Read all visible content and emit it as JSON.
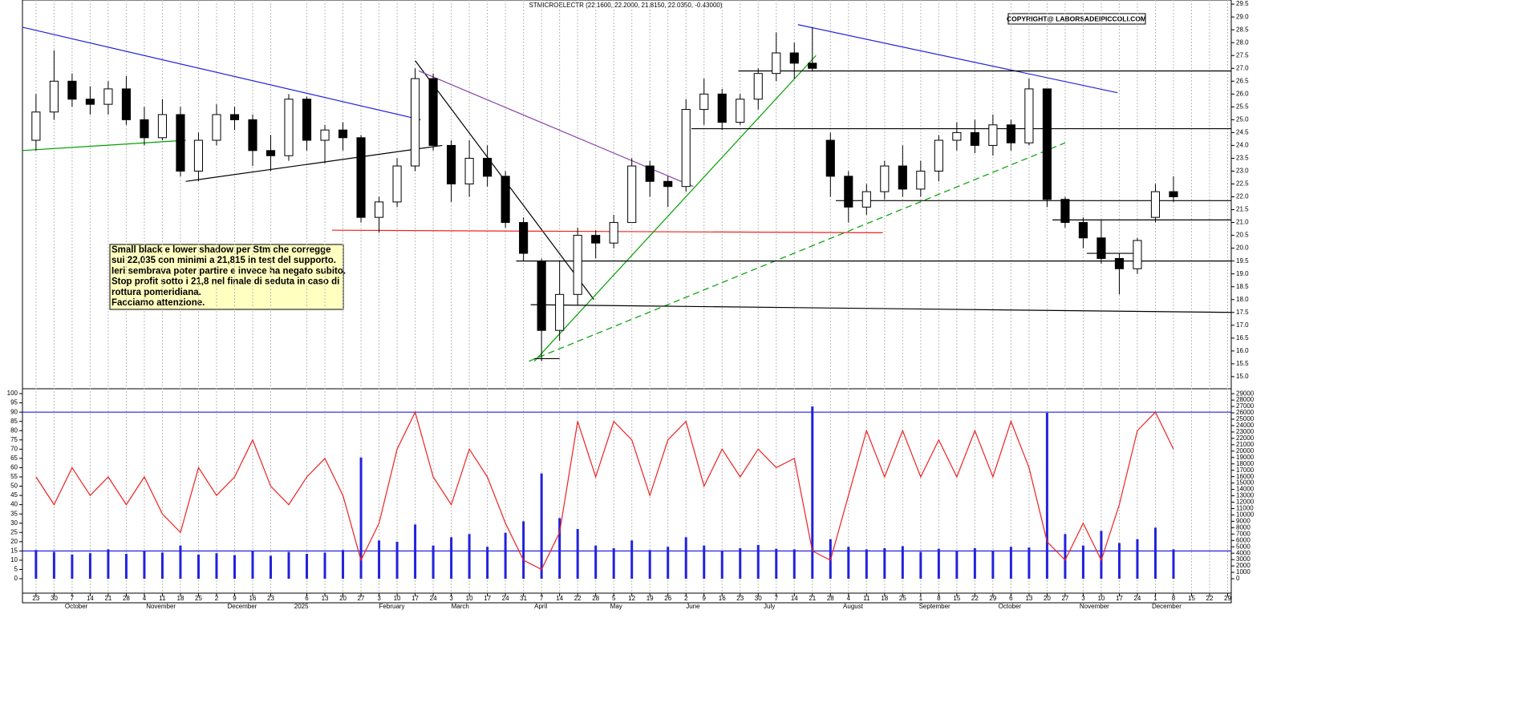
{
  "chart_data": [
    {
      "type": "candlestick",
      "title": "STMICROELECTR (22.1600, 22.2000, 21.8150, 22.0350, -0.43000)",
      "copyright": "COPYRIGHT@ LABORSADEIPICCOLI.COM",
      "annotation": [
        "Small black e lower shadow per Stm che corregge",
        "sui 22,035 con minimi a 21,815 in test del supporto.",
        "Ieri sembrava poter partire e invece ha negato subito.",
        "Stop profit sotto i 21,8 nel finale di seduta in caso di",
        "rottura pomeridiana.",
        "Facciamo attenzione."
      ],
      "open": [
        24.2,
        25.3,
        26.5,
        25.8,
        25.6,
        26.2,
        25.0,
        24.3,
        25.2,
        23.0,
        24.2,
        25.2,
        25.0,
        23.8,
        23.6,
        25.8,
        24.2,
        24.6,
        24.3,
        21.2,
        21.8,
        23.2,
        26.6,
        24.0,
        22.5,
        23.5,
        22.8,
        21.0,
        19.5,
        16.8,
        18.2,
        20.5,
        20.2,
        21.0,
        23.2,
        22.6,
        22.4,
        25.4,
        26.0,
        24.9,
        25.8,
        26.8,
        27.6,
        27.2,
        24.2,
        22.8,
        21.6,
        22.2,
        23.2,
        22.3,
        23.0,
        24.2,
        24.5,
        24.0,
        24.8,
        24.1,
        26.2,
        21.9,
        21.0,
        20.4,
        19.6,
        19.2,
        21.2,
        22.2
      ],
      "high": [
        26.0,
        27.7,
        26.8,
        26.3,
        26.5,
        26.7,
        25.5,
        25.8,
        25.5,
        24.5,
        25.6,
        25.5,
        25.2,
        24.4,
        26.0,
        25.9,
        24.8,
        24.9,
        24.4,
        22.0,
        23.5,
        27.0,
        26.8,
        24.2,
        24.2,
        24.0,
        23.0,
        21.2,
        19.6,
        19.5,
        20.8,
        20.7,
        21.3,
        23.5,
        23.4,
        22.8,
        25.8,
        26.6,
        26.2,
        26.0,
        27.0,
        28.4,
        28.0,
        28.6,
        24.5,
        23.0,
        22.5,
        23.4,
        24.0,
        23.4,
        24.4,
        24.9,
        25.0,
        25.2,
        25.0,
        26.6,
        26.2,
        22.0,
        21.2,
        21.1,
        19.8,
        20.4,
        22.5,
        22.8
      ],
      "low": [
        23.8,
        25.0,
        25.5,
        25.2,
        25.2,
        24.8,
        24.0,
        24.2,
        22.8,
        22.6,
        24.0,
        24.6,
        23.2,
        23.0,
        23.4,
        23.8,
        23.3,
        23.8,
        21.0,
        20.6,
        21.6,
        23.0,
        23.8,
        21.8,
        22.0,
        22.4,
        20.8,
        19.5,
        15.6,
        16.4,
        17.8,
        19.6,
        20.0,
        21.0,
        22.0,
        21.6,
        22.2,
        24.8,
        24.6,
        24.8,
        25.4,
        26.5,
        26.6,
        26.9,
        22.0,
        21.0,
        21.3,
        21.9,
        22.0,
        22.0,
        22.6,
        23.8,
        23.7,
        23.6,
        23.8,
        24.0,
        21.6,
        20.8,
        20.0,
        19.4,
        18.2,
        19.0,
        21.0,
        21.8
      ],
      "close": [
        25.3,
        26.5,
        25.8,
        25.6,
        26.2,
        25.0,
        24.3,
        25.2,
        23.0,
        24.2,
        25.2,
        25.0,
        23.8,
        23.6,
        25.8,
        24.2,
        24.6,
        24.3,
        21.2,
        21.8,
        23.2,
        26.6,
        24.0,
        22.5,
        23.5,
        22.8,
        21.0,
        19.8,
        16.8,
        18.2,
        20.5,
        20.2,
        21.0,
        23.2,
        22.6,
        22.4,
        25.4,
        26.0,
        24.9,
        25.8,
        26.8,
        27.6,
        27.2,
        27.0,
        22.8,
        21.6,
        22.2,
        23.2,
        22.3,
        23.0,
        24.2,
        24.5,
        24.0,
        24.8,
        24.1,
        26.2,
        21.9,
        21.0,
        20.4,
        19.6,
        19.2,
        20.3,
        22.2,
        22.0
      ],
      "xlim": [
        -0.75,
        66.2
      ],
      "ylim": [
        14.56,
        29.66
      ],
      "yticks": [
        {
          "value": 15.0,
          "label": "15.0"
        },
        {
          "value": 15.5,
          "label": "15.5"
        },
        {
          "value": 16.0,
          "label": "16.0"
        },
        {
          "value": 16.5,
          "label": "16.5"
        },
        {
          "value": 17.0,
          "label": "17.0"
        },
        {
          "value": 17.5,
          "label": "17.5"
        },
        {
          "value": 18.0,
          "label": "18.0"
        },
        {
          "value": 18.5,
          "label": "18.5"
        },
        {
          "value": 19.0,
          "label": "19.0"
        },
        {
          "value": 19.5,
          "label": "19.5"
        },
        {
          "value": 20.0,
          "label": "20.0"
        },
        {
          "value": 20.5,
          "label": "20.5"
        },
        {
          "value": 21.0,
          "label": "21.0"
        },
        {
          "value": 21.5,
          "label": "21.5"
        },
        {
          "value": 22.0,
          "label": "22.0"
        },
        {
          "value": 22.5,
          "label": "22.5"
        },
        {
          "value": 23.0,
          "label": "23.0"
        },
        {
          "value": 23.5,
          "label": "23.5"
        },
        {
          "value": 24.0,
          "label": "24.0"
        },
        {
          "value": 24.5,
          "label": "24.5"
        },
        {
          "value": 25.0,
          "label": "25.0"
        },
        {
          "value": 25.5,
          "label": "25.5"
        },
        {
          "value": 26.0,
          "label": "26.0"
        },
        {
          "value": 26.5,
          "label": "26.5"
        },
        {
          "value": 27.0,
          "label": "27.0"
        },
        {
          "value": 27.5,
          "label": "27.5"
        },
        {
          "value": 28.0,
          "label": "28.0"
        },
        {
          "value": 28.5,
          "label": "28.5"
        },
        {
          "value": 29.0,
          "label": "29.0"
        },
        {
          "value": 29.5,
          "label": "29.5"
        }
      ],
      "lines": [
        {
          "color": "#2222dd",
          "x": [
            -0.75,
            21.3
          ],
          "y": [
            28.6,
            25.0
          ]
        },
        {
          "color": "#00a000",
          "x": [
            -0.75,
            8.3
          ],
          "y": [
            23.8,
            24.2
          ]
        },
        {
          "color": "#000000",
          "x": [
            8.3,
            22.5
          ],
          "y": [
            22.6,
            24.0
          ]
        },
        {
          "color": "#000000",
          "x": [
            21.0,
            30.9
          ],
          "y": [
            27.3,
            18.0
          ]
        },
        {
          "color": "#8844aa",
          "x": [
            21.2,
            36.4
          ],
          "y": [
            26.9,
            22.4
          ]
        },
        {
          "color": "#ee2222",
          "x": [
            16.4,
            46.9
          ],
          "y": [
            20.7,
            20.6
          ]
        },
        {
          "color": "#00a000",
          "x": [
            27.6,
            43.2
          ],
          "y": [
            15.6,
            27.5
          ]
        },
        {
          "color": "#00a000",
          "x": [
            27.3,
            57.0
          ],
          "y": [
            15.6,
            24.1
          ],
          "dash": true
        },
        {
          "color": "#2222dd",
          "x": [
            42.2,
            59.9
          ],
          "y": [
            28.7,
            26.05
          ]
        },
        {
          "color": "#000000",
          "x": [
            38.9,
            66.2
          ],
          "y": [
            26.9,
            26.9
          ]
        },
        {
          "color": "#000000",
          "x": [
            36.3,
            66.2
          ],
          "y": [
            24.65,
            24.65
          ]
        },
        {
          "color": "#000000",
          "x": [
            44.3,
            66.2
          ],
          "y": [
            21.85,
            21.85
          ]
        },
        {
          "color": "#000000",
          "x": [
            56.3,
            66.2
          ],
          "y": [
            21.1,
            21.1
          ]
        },
        {
          "color": "#000000",
          "x": [
            26.6,
            66.2
          ],
          "y": [
            19.5,
            19.5
          ]
        },
        {
          "color": "#000000",
          "x": [
            27.4,
            66.2
          ],
          "y": [
            17.8,
            17.5
          ]
        },
        {
          "color": "#000000",
          "x": [
            58.2,
            61.0
          ],
          "y": [
            19.8,
            19.8
          ]
        },
        {
          "color": "#000000",
          "x": [
            27.6,
            29.0
          ],
          "y": [
            15.7,
            15.7
          ]
        }
      ],
      "grid": true
    },
    {
      "type": "line",
      "xlim": [
        -0.75,
        66.2
      ],
      "ylim": [
        -7.8,
        102.2
      ],
      "y2lim": [
        -2260,
        29650
      ],
      "yticks": [
        0,
        5,
        10,
        15,
        20,
        25,
        30,
        35,
        40,
        45,
        50,
        55,
        60,
        65,
        70,
        75,
        80,
        85,
        90,
        95,
        100
      ],
      "y2ticks": [
        0,
        1000,
        2000,
        3000,
        4000,
        5000,
        6000,
        7000,
        8000,
        9000,
        10000,
        11000,
        12000,
        13000,
        14000,
        15000,
        16000,
        17000,
        18000,
        19000,
        20000,
        21000,
        22000,
        23000,
        24000,
        25000,
        26000,
        27000,
        28000,
        29000
      ],
      "levels": [
        90,
        15
      ],
      "level_color": "#2222dd",
      "series": [
        {
          "name": "RSI",
          "color": "#ee2222",
          "values": [
            55,
            40,
            60,
            45,
            55,
            40,
            55,
            35,
            25,
            60,
            45,
            55,
            75,
            50,
            40,
            55,
            65,
            45,
            10,
            30,
            70,
            90,
            55,
            40,
            70,
            55,
            30,
            10,
            5,
            25,
            85,
            55,
            85,
            75,
            45,
            75,
            85,
            50,
            70,
            55,
            70,
            60,
            65,
            15,
            10,
            45,
            80,
            55,
            80,
            55,
            75,
            55,
            80,
            55,
            85,
            60,
            20,
            10,
            30,
            10,
            40,
            80,
            90,
            70
          ]
        },
        {
          "name": "Volume",
          "type": "bar",
          "axis": "y2",
          "color": "#2222dd",
          "values": [
            4500,
            4200,
            3800,
            4000,
            4600,
            3900,
            4300,
            4100,
            5200,
            3800,
            4000,
            3700,
            4400,
            3600,
            4200,
            3900,
            4100,
            4500,
            19000,
            6000,
            5800,
            8500,
            5200,
            6500,
            7000,
            5000,
            7200,
            9000,
            16500,
            9500,
            7800,
            5200,
            4800,
            6000,
            4500,
            5000,
            6500,
            5200,
            4400,
            4800,
            5300,
            4700,
            4600,
            27000,
            6200,
            5000,
            4600,
            4800,
            5100,
            4200,
            4700,
            4400,
            4800,
            4300,
            5000,
            4900,
            26000,
            7000,
            5200,
            7500,
            5600,
            6200,
            8000,
            4600
          ]
        }
      ],
      "xticks": [
        {
          "value": 0,
          "label": "23"
        },
        {
          "value": 1,
          "label": "30"
        },
        {
          "value": 2,
          "label": "7"
        },
        {
          "value": 3,
          "label": "14"
        },
        {
          "value": 4,
          "label": "21"
        },
        {
          "value": 5,
          "label": "28"
        },
        {
          "value": 6,
          "label": "4"
        },
        {
          "value": 7,
          "label": "11"
        },
        {
          "value": 8,
          "label": "18"
        },
        {
          "value": 9,
          "label": "25"
        },
        {
          "value": 10,
          "label": "2"
        },
        {
          "value": 11,
          "label": "9"
        },
        {
          "value": 12,
          "label": "16"
        },
        {
          "value": 13,
          "label": "23"
        },
        {
          "value": 15,
          "label": "6"
        },
        {
          "value": 16,
          "label": "13"
        },
        {
          "value": 17,
          "label": "20"
        },
        {
          "value": 18,
          "label": "27"
        },
        {
          "value": 19,
          "label": "3"
        },
        {
          "value": 20,
          "label": "10"
        },
        {
          "value": 21,
          "label": "17"
        },
        {
          "value": 22,
          "label": "24"
        },
        {
          "value": 23,
          "label": "3"
        },
        {
          "value": 24,
          "label": "10"
        },
        {
          "value": 25,
          "label": "17"
        },
        {
          "value": 26,
          "label": "24"
        },
        {
          "value": 27,
          "label": "31"
        },
        {
          "value": 28,
          "label": "7"
        },
        {
          "value": 29,
          "label": "14"
        },
        {
          "value": 30,
          "label": "22"
        },
        {
          "value": 31,
          "label": "28"
        },
        {
          "value": 32,
          "label": "5"
        },
        {
          "value": 33,
          "label": "12"
        },
        {
          "value": 34,
          "label": "19"
        },
        {
          "value": 35,
          "label": "26"
        },
        {
          "value": 36,
          "label": "2"
        },
        {
          "value": 37,
          "label": "9"
        },
        {
          "value": 38,
          "label": "16"
        },
        {
          "value": 39,
          "label": "23"
        },
        {
          "value": 40,
          "label": "30"
        },
        {
          "value": 41,
          "label": "7"
        },
        {
          "value": 42,
          "label": "14"
        },
        {
          "value": 43,
          "label": "21"
        },
        {
          "value": 44,
          "label": "28"
        },
        {
          "value": 45,
          "label": "4"
        },
        {
          "value": 46,
          "label": "11"
        },
        {
          "value": 47,
          "label": "18"
        },
        {
          "value": 48,
          "label": "25"
        },
        {
          "value": 49,
          "label": "1"
        },
        {
          "value": 50,
          "label": "8"
        },
        {
          "value": 51,
          "label": "15"
        },
        {
          "value": 52,
          "label": "22"
        },
        {
          "value": 53,
          "label": "29"
        },
        {
          "value": 54,
          "label": "6"
        },
        {
          "value": 55,
          "label": "13"
        },
        {
          "value": 56,
          "label": "20"
        },
        {
          "value": 57,
          "label": "27"
        },
        {
          "value": 58,
          "label": "3"
        },
        {
          "value": 59,
          "label": "10"
        },
        {
          "value": 60,
          "label": "17"
        },
        {
          "value": 61,
          "label": "24"
        },
        {
          "value": 62,
          "label": "1"
        },
        {
          "value": 63,
          "label": "8"
        },
        {
          "value": 64,
          "label": "15"
        },
        {
          "value": 65,
          "label": "22"
        },
        {
          "value": 66,
          "label": "29"
        }
      ],
      "months": [
        {
          "value": 1.6,
          "label": "October"
        },
        {
          "value": 6.1,
          "label": "November"
        },
        {
          "value": 10.6,
          "label": "December"
        },
        {
          "value": 14.3,
          "label": "2025"
        },
        {
          "value": 19.0,
          "label": "February"
        },
        {
          "value": 23.0,
          "label": "March"
        },
        {
          "value": 27.6,
          "label": "April"
        },
        {
          "value": 31.8,
          "label": "May"
        },
        {
          "value": 36.0,
          "label": "June"
        },
        {
          "value": 40.3,
          "label": "July"
        },
        {
          "value": 44.7,
          "label": "August"
        },
        {
          "value": 48.9,
          "label": "September"
        },
        {
          "value": 53.3,
          "label": "October"
        },
        {
          "value": 57.8,
          "label": "November"
        },
        {
          "value": 61.8,
          "label": "December"
        }
      ]
    }
  ]
}
